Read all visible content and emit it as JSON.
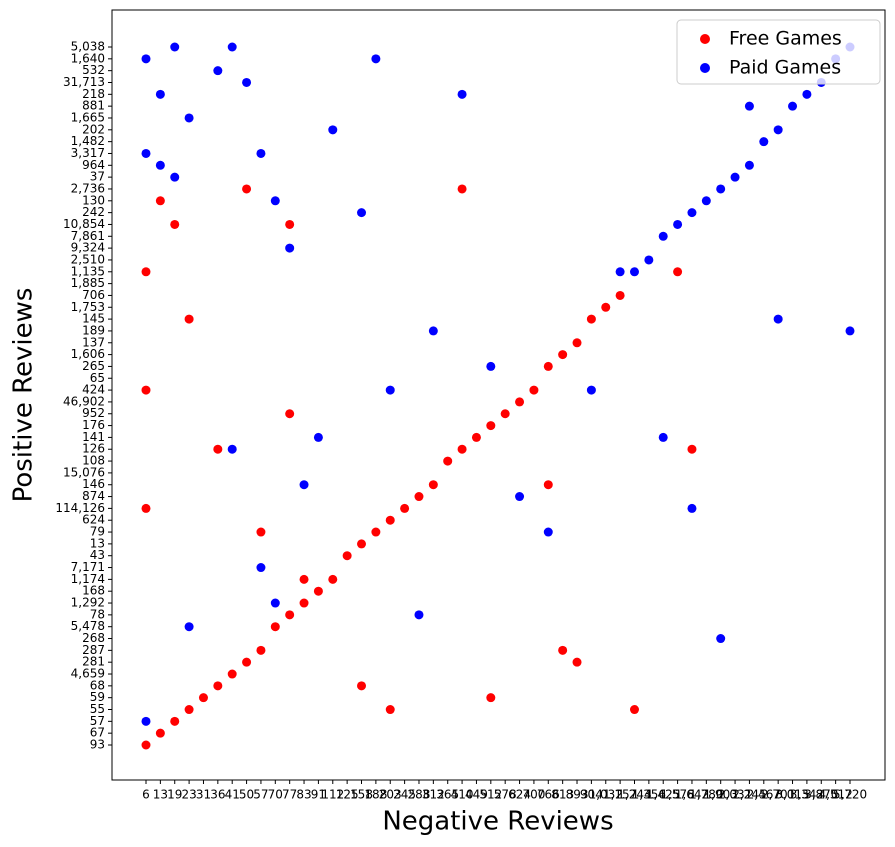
{
  "chart_data": {
    "type": "scatter",
    "x_label": "Negative Reviews",
    "y_label": "Positive Reviews",
    "legend": "upper right",
    "xcategories": [
      "6",
      "13",
      "19",
      "23",
      "31",
      "36",
      "41",
      "50",
      "57",
      "70",
      "77",
      "83",
      "91",
      "112",
      "125",
      "158",
      "188",
      "203",
      "245",
      "288",
      "312",
      "365",
      "410",
      "449",
      "512",
      "578",
      "624",
      "700",
      "766",
      "813",
      "893",
      "904",
      "1,032",
      "1,157",
      "1,244",
      "1,356",
      "1,425",
      "1,578",
      "1,642",
      "1,780",
      "1,903",
      "2,031",
      "2,245",
      "2,467",
      "2,701",
      "3,015",
      "3,342",
      "3,870",
      "4,512",
      "5,720"
    ],
    "ycategories": [
      "93",
      "67",
      "57",
      "55",
      "59",
      "68",
      "4,659",
      "281",
      "287",
      "268",
      "5,478",
      "78",
      "1,292",
      "168",
      "1,174",
      "7,171",
      "43",
      "13",
      "79",
      "624",
      "114,126",
      "874",
      "146",
      "15,076",
      "108",
      "126",
      "141",
      "176",
      "952",
      "46,902",
      "424",
      "65",
      "265",
      "1,606",
      "137",
      "189",
      "145",
      "1,753",
      "706",
      "1,885",
      "1,135",
      "2,510",
      "9,324",
      "7,861",
      "10,854",
      "242",
      "130",
      "2,736",
      "37",
      "964",
      "3,317",
      "1,482",
      "202",
      "1,665",
      "881",
      "218",
      "31,713",
      "532",
      "1,640",
      "5,038"
    ],
    "series": [
      {
        "name": "Free Games",
        "color": "#ff0000",
        "x": [
          "6",
          "13",
          "19",
          "23",
          "31",
          "36",
          "41",
          "50",
          "57",
          "70",
          "77",
          "83",
          "91",
          "112",
          "125",
          "158",
          "188",
          "203",
          "245",
          "288",
          "312",
          "365",
          "410",
          "449",
          "512",
          "578",
          "624",
          "700",
          "766",
          "813",
          "893",
          "904",
          "1,032",
          "1,157",
          "6",
          "6",
          "13",
          "19",
          "6",
          "23",
          "36",
          "50",
          "57",
          "77",
          "77",
          "83",
          "158",
          "203",
          "410",
          "512",
          "766",
          "813",
          "893",
          "1,244",
          "1,578",
          "1,642"
        ],
        "y": [
          "93",
          "67",
          "57",
          "55",
          "59",
          "68",
          "4,659",
          "281",
          "287",
          "5,478",
          "78",
          "1,292",
          "168",
          "1,174",
          "43",
          "13",
          "79",
          "624",
          "114,126",
          "874",
          "146",
          "108",
          "126",
          "141",
          "176",
          "952",
          "46,902",
          "424",
          "265",
          "1,606",
          "137",
          "145",
          "1,753",
          "706",
          "1,135",
          "114,126",
          "130",
          "10,854",
          "424",
          "145",
          "126",
          "2,736",
          "79",
          "10,854",
          "952",
          "1,174",
          "68",
          "55",
          "2,736",
          "59",
          "146",
          "287",
          "281",
          "55",
          "1,135",
          "126"
        ]
      },
      {
        "name": "Paid Games",
        "color": "#0000ff",
        "x": [
          "1,244",
          "1,356",
          "1,425",
          "1,578",
          "1,642",
          "1,780",
          "1,903",
          "2,031",
          "2,245",
          "2,467",
          "2,701",
          "3,015",
          "3,342",
          "3,870",
          "4,512",
          "5,720",
          "6",
          "13",
          "19",
          "6",
          "13",
          "19",
          "23",
          "36",
          "41",
          "50",
          "57",
          "70",
          "77",
          "83",
          "91",
          "112",
          "158",
          "188",
          "203",
          "288",
          "312",
          "410",
          "512",
          "624",
          "766",
          "904",
          "1,157",
          "1,425",
          "1,642",
          "1,903",
          "2,245",
          "2,701",
          "5,720",
          "6",
          "23",
          "41",
          "57",
          "70"
        ],
        "y": [
          "1,135",
          "2,510",
          "7,861",
          "10,854",
          "242",
          "130",
          "2,736",
          "37",
          "964",
          "1,482",
          "202",
          "881",
          "218",
          "31,713",
          "1,640",
          "5,038",
          "1,640",
          "218",
          "5,038",
          "3,317",
          "964",
          "37",
          "1,665",
          "532",
          "5,038",
          "31,713",
          "3,317",
          "130",
          "9,324",
          "146",
          "141",
          "202",
          "242",
          "1,640",
          "424",
          "78",
          "189",
          "218",
          "265",
          "874",
          "79",
          "424",
          "1,135",
          "141",
          "114,126",
          "268",
          "881",
          "145",
          "189",
          "57",
          "5,478",
          "126",
          "7,171",
          "1,292"
        ]
      }
    ]
  }
}
